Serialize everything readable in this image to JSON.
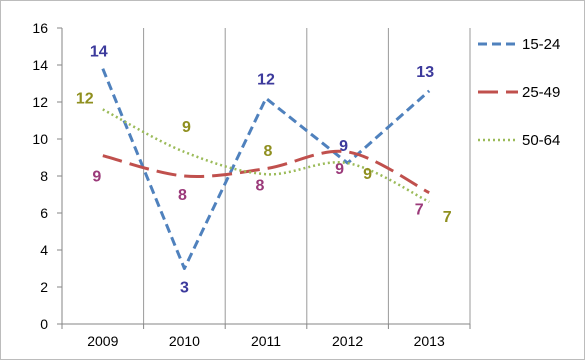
{
  "chart_data": {
    "type": "line",
    "title": "",
    "xlabel": "",
    "ylabel": "",
    "categories": [
      "2009",
      "2010",
      "2011",
      "2012",
      "2013"
    ],
    "ylim": [
      0,
      16
    ],
    "yticks": [
      0,
      2,
      4,
      6,
      8,
      10,
      12,
      14,
      16
    ],
    "grid": "vertical",
    "legend_position": "right",
    "series": [
      {
        "name": "15-24",
        "values": [
          13.8,
          3,
          12.2,
          8.7,
          12.6
        ],
        "labels": [
          "14",
          "3",
          "12",
          "9",
          "13"
        ],
        "color": "#4f81bd",
        "label_color": "#3c3a9c",
        "style": "dashed",
        "smooth": false
      },
      {
        "name": "25-49",
        "values": [
          9.1,
          8,
          8.4,
          9.3,
          7.1
        ],
        "labels": [
          "9",
          "8",
          "8",
          "9",
          "7"
        ],
        "color": "#c0504d",
        "label_color": "#9b3a7a",
        "style": "long-dashed",
        "smooth": true
      },
      {
        "name": "50-64",
        "values": [
          11.6,
          9.3,
          8.1,
          8.7,
          6.6
        ],
        "labels": [
          "12",
          "9",
          "8",
          "9",
          "7"
        ],
        "color": "#9bbb59",
        "label_color": "#8f8f1f",
        "style": "dotted",
        "smooth": true
      }
    ]
  }
}
